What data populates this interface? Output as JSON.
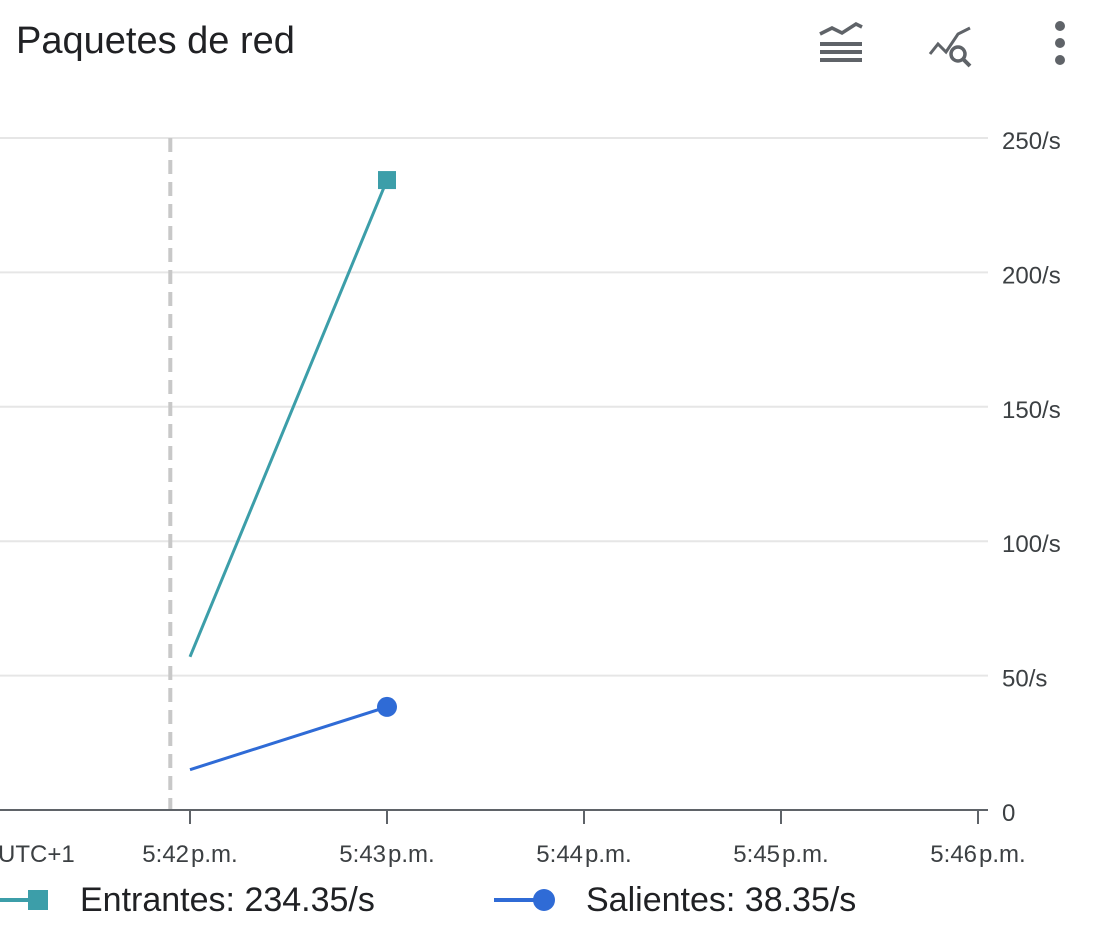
{
  "header": {
    "title": "Paquetes de red",
    "icons": [
      "legend-toggle-icon",
      "explore-chart-icon",
      "more-options-icon"
    ]
  },
  "colors": {
    "entrantes": "#3c9ea9",
    "salientes": "#2f6bd6",
    "grid": "#e6e6e6",
    "axis": "#5f6368",
    "now_marker": "#c8c8c8"
  },
  "chart_data": {
    "type": "line",
    "x_timezone_label": "UTC+1",
    "x_ticks": [
      {
        "value": "5:42",
        "suffix": "p.m."
      },
      {
        "value": "5:43",
        "suffix": "p.m."
      },
      {
        "value": "5:44",
        "suffix": "p.m."
      },
      {
        "value": "5:45",
        "suffix": "p.m."
      },
      {
        "value": "5:46",
        "suffix": "p.m."
      }
    ],
    "y_ticks": [
      "0",
      "50/s",
      "100/s",
      "150/s",
      "200/s",
      "250/s"
    ],
    "ylim": [
      0,
      250
    ],
    "grid": true,
    "vertical_marker_time": "5:41.9 p.m.",
    "series": [
      {
        "name": "Entrantes",
        "marker": "square",
        "x": [
          "5:42 p.m.",
          "5:43 p.m."
        ],
        "values": [
          57,
          234.35
        ]
      },
      {
        "name": "Salientes",
        "marker": "circle",
        "x": [
          "5:42 p.m.",
          "5:43 p.m."
        ],
        "values": [
          15,
          38.35
        ]
      }
    ],
    "legend": [
      {
        "label": "Entrantes:",
        "value": "234.35/s"
      },
      {
        "label": "Salientes:",
        "value": "38.35/s"
      }
    ],
    "legend_position": "bottom"
  }
}
